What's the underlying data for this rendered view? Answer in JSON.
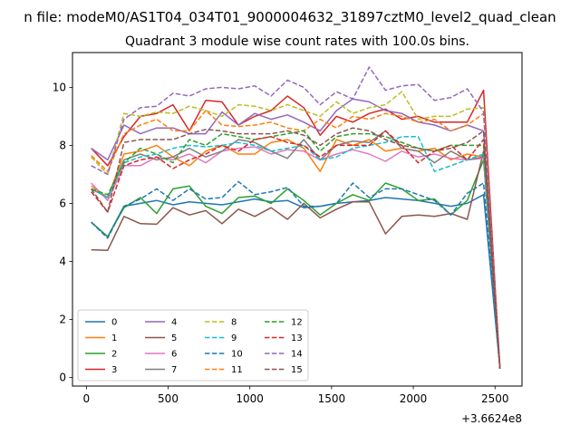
{
  "chart_data": {
    "type": "line",
    "suptitle": "n file: modeM0/AS1T04_034T01_9000004632_31897cztM0_level2_quad_clean",
    "title": "Quadrant 3 module wise count rates with 100.0s bins.",
    "xlabel": "",
    "ylabel": "",
    "x_offset_label": "+3.6624e8",
    "xlim": [
      -85,
      2665
    ],
    "ylim": [
      -0.3,
      11.2
    ],
    "xticks": [
      0,
      500,
      1000,
      1500,
      2000,
      2500
    ],
    "yticks": [
      0,
      2,
      4,
      6,
      8,
      10
    ],
    "grid": false,
    "legend_position": "lower-left",
    "x": [
      30,
      130,
      230,
      330,
      430,
      530,
      630,
      730,
      830,
      930,
      1030,
      1130,
      1230,
      1330,
      1430,
      1530,
      1630,
      1730,
      1830,
      1930,
      2030,
      2130,
      2230,
      2330,
      2430,
      2530
    ],
    "series": [
      {
        "name": "0",
        "color": "#1f77b4",
        "dash": "solid",
        "values": [
          5.35,
          4.85,
          5.9,
          6.0,
          6.1,
          5.95,
          6.05,
          6.0,
          5.95,
          6.05,
          6.15,
          6.05,
          6.1,
          5.85,
          5.9,
          6.0,
          6.05,
          6.1,
          6.2,
          6.15,
          6.1,
          6.0,
          5.9,
          6.0,
          6.3,
          0.3
        ]
      },
      {
        "name": "1",
        "color": "#ff7f0e",
        "dash": "solid",
        "values": [
          6.6,
          6.2,
          7.7,
          7.8,
          8.0,
          7.6,
          7.3,
          7.8,
          8.0,
          7.7,
          7.7,
          8.1,
          8.2,
          7.9,
          7.1,
          8.2,
          8.0,
          8.2,
          7.8,
          7.9,
          7.8,
          7.9,
          7.5,
          7.7,
          7.6,
          0.3
        ]
      },
      {
        "name": "2",
        "color": "#2ca02c",
        "dash": "solid",
        "values": [
          5.35,
          4.85,
          5.85,
          6.2,
          5.65,
          6.5,
          6.6,
          5.9,
          5.65,
          6.2,
          6.25,
          6.0,
          6.5,
          6.1,
          5.6,
          6.0,
          6.3,
          6.1,
          6.7,
          6.5,
          6.1,
          6.15,
          5.6,
          6.1,
          7.5,
          0.3
        ]
      },
      {
        "name": "3",
        "color": "#d62728",
        "dash": "solid",
        "values": [
          7.9,
          7.3,
          8.3,
          9.0,
          9.1,
          9.4,
          8.5,
          9.55,
          9.5,
          8.7,
          9.0,
          9.2,
          9.7,
          9.3,
          8.35,
          9.0,
          8.8,
          9.1,
          9.25,
          8.9,
          9.0,
          8.8,
          8.8,
          8.8,
          9.9,
          0.3
        ]
      },
      {
        "name": "4",
        "color": "#9467bd",
        "dash": "solid",
        "values": [
          7.9,
          7.5,
          8.7,
          8.4,
          8.6,
          8.6,
          8.4,
          8.4,
          9.15,
          8.7,
          9.1,
          8.9,
          9.05,
          8.8,
          8.5,
          9.2,
          9.6,
          9.5,
          9.2,
          9.1,
          8.8,
          8.7,
          8.5,
          8.7,
          8.5,
          0.3
        ]
      },
      {
        "name": "5",
        "color": "#8c564b",
        "dash": "solid",
        "values": [
          4.4,
          4.38,
          5.55,
          5.3,
          5.28,
          5.85,
          5.6,
          5.75,
          5.3,
          5.8,
          5.55,
          5.85,
          5.45,
          6.0,
          5.5,
          5.8,
          6.05,
          6.05,
          4.95,
          5.55,
          5.6,
          5.55,
          5.65,
          5.45,
          7.8,
          0.3
        ]
      },
      {
        "name": "6",
        "color": "#e377c2",
        "dash": "solid",
        "values": [
          6.7,
          6.1,
          7.3,
          7.3,
          7.6,
          7.5,
          7.7,
          7.4,
          7.8,
          7.9,
          7.95,
          7.7,
          7.85,
          7.8,
          7.5,
          7.7,
          7.85,
          7.7,
          7.45,
          7.8,
          7.6,
          7.7,
          7.55,
          7.5,
          7.55,
          0.3
        ]
      },
      {
        "name": "7",
        "color": "#7f7f7f",
        "dash": "solid",
        "values": [
          6.5,
          6.2,
          7.5,
          7.7,
          7.5,
          7.6,
          7.9,
          7.6,
          7.8,
          8.2,
          8.1,
          7.8,
          7.55,
          8.2,
          7.5,
          8.0,
          8.15,
          8.1,
          8.5,
          7.9,
          7.8,
          7.4,
          7.8,
          7.5,
          7.6,
          0.3
        ]
      },
      {
        "name": "8",
        "color": "#bcbd22",
        "dash": "dashed",
        "values": [
          7.6,
          7.0,
          9.1,
          9.0,
          9.15,
          9.1,
          9.35,
          9.2,
          9.0,
          9.4,
          9.35,
          9.2,
          9.4,
          9.2,
          9.0,
          9.5,
          9.1,
          9.3,
          9.4,
          9.85,
          8.9,
          9.0,
          9.0,
          9.25,
          9.3,
          0.3
        ]
      },
      {
        "name": "9",
        "color": "#17becf",
        "dash": "dashed",
        "values": [
          6.5,
          6.2,
          7.4,
          7.6,
          7.7,
          7.9,
          8.0,
          7.95,
          8.0,
          8.1,
          8.0,
          7.8,
          7.9,
          8.0,
          7.5,
          7.6,
          7.9,
          8.0,
          8.1,
          8.3,
          8.3,
          7.1,
          7.3,
          7.5,
          7.7,
          0.3
        ]
      },
      {
        "name": "10",
        "color": "#1f77b4",
        "dash": "dashed",
        "values": [
          5.35,
          4.8,
          5.9,
          6.15,
          6.5,
          6.1,
          6.5,
          6.15,
          6.2,
          6.75,
          6.3,
          6.4,
          6.55,
          5.9,
          5.9,
          6.0,
          6.7,
          6.2,
          6.5,
          6.5,
          6.3,
          6.1,
          5.6,
          6.35,
          6.7,
          0.3
        ]
      },
      {
        "name": "11",
        "color": "#ff7f0e",
        "dash": "dashed",
        "values": [
          7.65,
          7.1,
          8.4,
          8.7,
          8.9,
          8.5,
          8.5,
          9.2,
          8.7,
          8.65,
          8.7,
          8.8,
          8.6,
          8.5,
          8.9,
          8.6,
          9.0,
          8.9,
          9.1,
          9.0,
          8.8,
          8.9,
          8.5,
          8.7,
          9.1,
          0.3
        ]
      },
      {
        "name": "12",
        "color": "#2ca02c",
        "dash": "dashed",
        "values": [
          6.5,
          6.3,
          7.4,
          7.9,
          7.7,
          7.4,
          8.2,
          8.0,
          8.4,
          8.3,
          8.2,
          8.3,
          8.4,
          8.5,
          7.8,
          8.3,
          8.4,
          8.4,
          8.3,
          8.1,
          7.9,
          7.8,
          8.0,
          8.0,
          8.0,
          0.3
        ]
      },
      {
        "name": "13",
        "color": "#d62728",
        "dash": "dashed",
        "values": [
          6.4,
          5.7,
          7.3,
          7.5,
          7.6,
          7.2,
          7.5,
          7.7,
          8.0,
          7.8,
          8.2,
          8.3,
          8.1,
          8.0,
          7.6,
          8.0,
          8.0,
          8.0,
          8.5,
          8.0,
          7.4,
          7.8,
          8.0,
          7.5,
          8.2,
          0.3
        ]
      },
      {
        "name": "14",
        "color": "#9467bd",
        "dash": "dashed",
        "values": [
          7.3,
          7.0,
          8.9,
          9.3,
          9.35,
          9.8,
          9.7,
          9.95,
          10.0,
          9.95,
          10.05,
          9.7,
          10.25,
          10.0,
          9.4,
          9.85,
          9.6,
          10.7,
          9.9,
          10.05,
          10.1,
          9.55,
          9.65,
          9.95,
          9.15,
          0.3
        ]
      },
      {
        "name": "15",
        "color": "#8c564b",
        "dash": "dashed",
        "values": [
          6.5,
          5.7,
          8.1,
          8.2,
          8.2,
          8.2,
          8.4,
          8.55,
          8.5,
          8.4,
          8.4,
          8.4,
          8.5,
          8.35,
          8.0,
          8.4,
          8.6,
          8.5,
          8.2,
          8.0,
          7.9,
          7.8,
          7.9,
          8.1,
          8.5,
          0.3
        ]
      }
    ]
  }
}
